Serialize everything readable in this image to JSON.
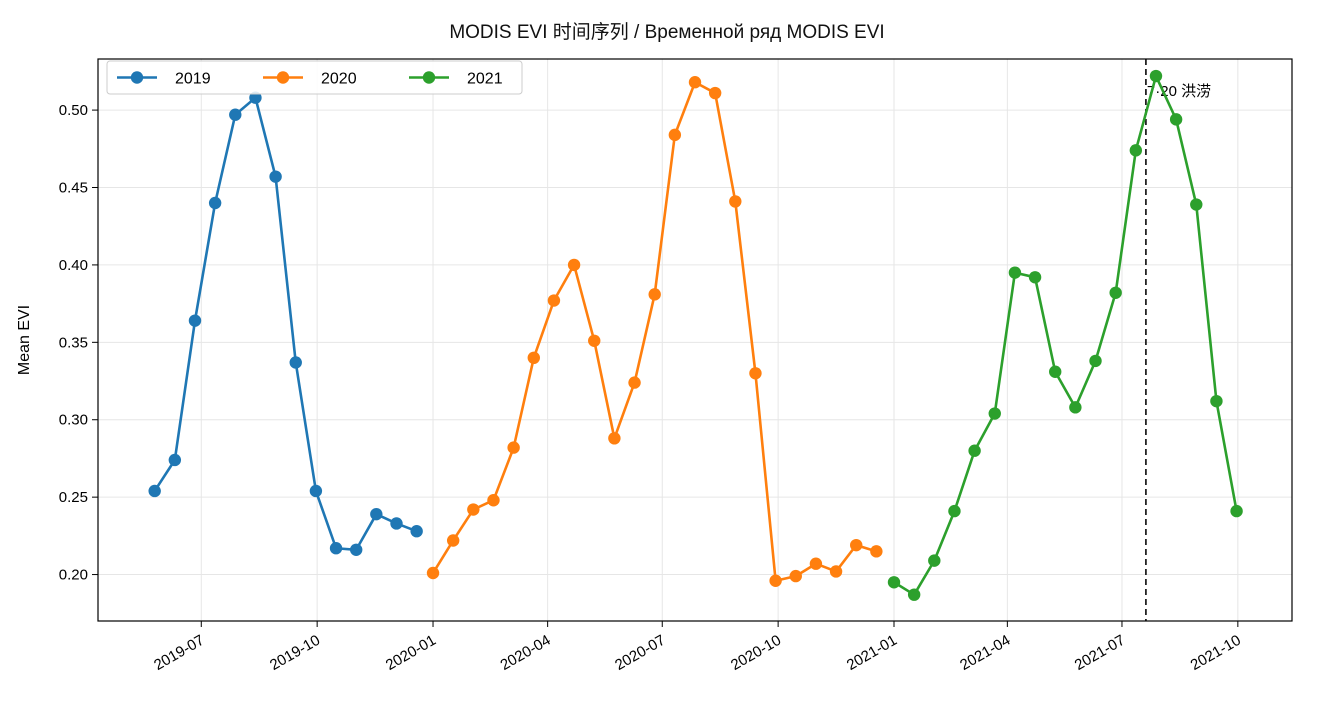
{
  "chart_data": {
    "type": "line",
    "title": "MODIS EVI 时间序列 / Временной ряд MODIS EVI",
    "xlabel": "",
    "ylabel": "Mean EVI",
    "xlim": [
      "2019-04-10",
      "2021-11-13"
    ],
    "ylim": [
      0.17,
      0.533
    ],
    "x_ticks": [
      "2019-07-01",
      "2019-10-01",
      "2020-01-01",
      "2020-04-01",
      "2020-07-01",
      "2020-10-01",
      "2021-01-01",
      "2021-04-01",
      "2021-07-01",
      "2021-10-01"
    ],
    "x_tick_labels": [
      "2019-07",
      "2019-10",
      "2020-01",
      "2020-04",
      "2020-07",
      "2020-10",
      "2021-01",
      "2021-04",
      "2021-07",
      "2021-10"
    ],
    "y_ticks": [
      0.2,
      0.25,
      0.3,
      0.35,
      0.4,
      0.45,
      0.5
    ],
    "y_tick_labels": [
      "0.20",
      "0.25",
      "0.30",
      "0.35",
      "0.40",
      "0.45",
      "0.50"
    ],
    "grid": true,
    "legend": "top-left",
    "series": [
      {
        "name": "2019",
        "color": "#1f77b4",
        "x": [
          "2019-05-25",
          "2019-06-10",
          "2019-06-26",
          "2019-07-12",
          "2019-07-28",
          "2019-08-13",
          "2019-08-29",
          "2019-09-14",
          "2019-09-30",
          "2019-10-16",
          "2019-11-01",
          "2019-11-17",
          "2019-12-03",
          "2019-12-19"
        ],
        "values": [
          0.254,
          0.274,
          0.364,
          0.44,
          0.497,
          0.508,
          0.457,
          0.337,
          0.254,
          0.217,
          0.216,
          0.239,
          0.233,
          0.228
        ]
      },
      {
        "name": "2020",
        "color": "#ff7f0e",
        "x": [
          "2020-01-01",
          "2020-01-17",
          "2020-02-02",
          "2020-02-18",
          "2020-03-05",
          "2020-03-21",
          "2020-04-06",
          "2020-04-22",
          "2020-05-08",
          "2020-05-24",
          "2020-06-09",
          "2020-06-25",
          "2020-07-11",
          "2020-07-27",
          "2020-08-12",
          "2020-08-28",
          "2020-09-13",
          "2020-09-29",
          "2020-10-15",
          "2020-10-31",
          "2020-11-16",
          "2020-12-02",
          "2020-12-18"
        ],
        "values": [
          0.201,
          0.222,
          0.242,
          0.248,
          0.282,
          0.34,
          0.377,
          0.4,
          0.351,
          0.288,
          0.324,
          0.381,
          0.484,
          0.518,
          0.511,
          0.441,
          0.33,
          0.196,
          0.199,
          0.207,
          0.202,
          0.219,
          0.215
        ]
      },
      {
        "name": "2021",
        "color": "#2ca02c",
        "x": [
          "2021-01-01",
          "2021-01-17",
          "2021-02-02",
          "2021-02-18",
          "2021-03-06",
          "2021-03-22",
          "2021-04-07",
          "2021-04-23",
          "2021-05-09",
          "2021-05-25",
          "2021-06-10",
          "2021-06-26",
          "2021-07-12",
          "2021-07-28",
          "2021-08-13",
          "2021-08-29",
          "2021-09-14",
          "2021-09-30"
        ],
        "values": [
          0.195,
          0.187,
          0.209,
          0.241,
          0.28,
          0.304,
          0.395,
          0.392,
          0.331,
          0.308,
          0.338,
          0.382,
          0.474,
          0.522,
          0.494,
          0.439,
          0.312,
          0.241
        ]
      }
    ],
    "annotations": [
      {
        "type": "vline",
        "x": "2021-07-20",
        "label": "7·20 洪涝",
        "style": "dashed",
        "color": "#222222"
      }
    ]
  }
}
